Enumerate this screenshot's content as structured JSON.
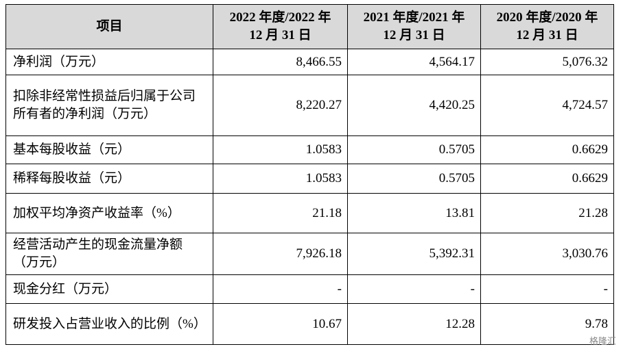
{
  "table": {
    "header": [
      [
        "项目"
      ],
      [
        "2022 年度/2022 年",
        "12 月 31 日"
      ],
      [
        "2021 年度/2021 年",
        "12 月 31 日"
      ],
      [
        "2020 年度/2020 年",
        "12 月 31 日"
      ]
    ],
    "rows": [
      [
        "净利润（万元）",
        "8,466.55",
        "4,564.17",
        "5,076.32"
      ],
      [
        "扣除非经常性损益后归属于公司所有者的净利润（万元）",
        "8,220.27",
        "4,420.25",
        "4,724.57"
      ],
      [
        "基本每股收益（元）",
        "1.0583",
        "0.5705",
        "0.6629"
      ],
      [
        "稀释每股收益（元）",
        "1.0583",
        "0.5705",
        "0.6629"
      ],
      [
        "加权平均净资产收益率（%）",
        "21.18",
        "13.81",
        "21.28"
      ],
      [
        "经营活动产生的现金流量净额（万元）",
        "7,926.18",
        "5,392.31",
        "3,030.76"
      ],
      [
        "现金分红（万元）",
        "-",
        "-",
        "-"
      ],
      [
        "研发投入占营业收入的比例（%）",
        "10.67",
        "12.28",
        "9.78"
      ]
    ]
  },
  "watermark": "格隆汇"
}
